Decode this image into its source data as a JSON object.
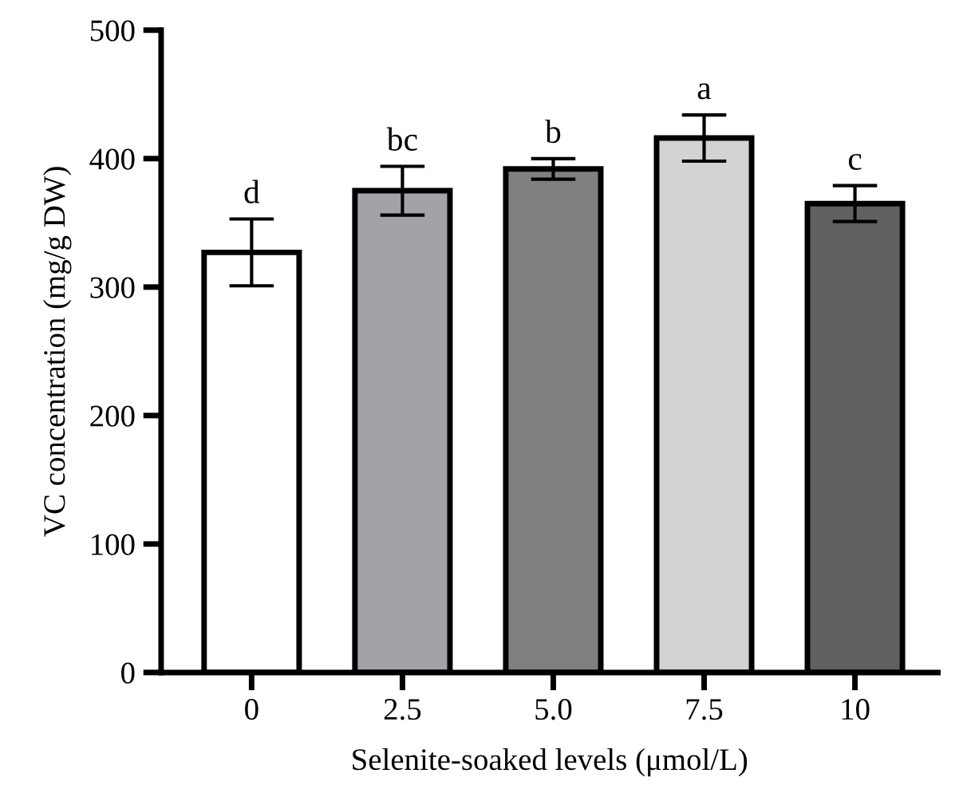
{
  "chart_data": {
    "type": "bar",
    "xlabel": "Selenite-soaked levels (μmol/L)",
    "ylabel": "VC concentration (mg/g DW)",
    "categories": [
      "0",
      "2.5",
      "5.0",
      "7.5",
      "10"
    ],
    "values": [
      327,
      375,
      392,
      416,
      365
    ],
    "errors": [
      26,
      19,
      8,
      18,
      14
    ],
    "colors": [
      "#ffffff",
      "#a3a2a7",
      "#808080",
      "#d3d3d3",
      "#606060"
    ],
    "ylim": [
      0,
      500
    ],
    "yticks": [
      0,
      100,
      200,
      300,
      400,
      500
    ],
    "grid": false,
    "legend": false,
    "annotations": [
      "d",
      "bc",
      "b",
      "a",
      "c"
    ]
  }
}
